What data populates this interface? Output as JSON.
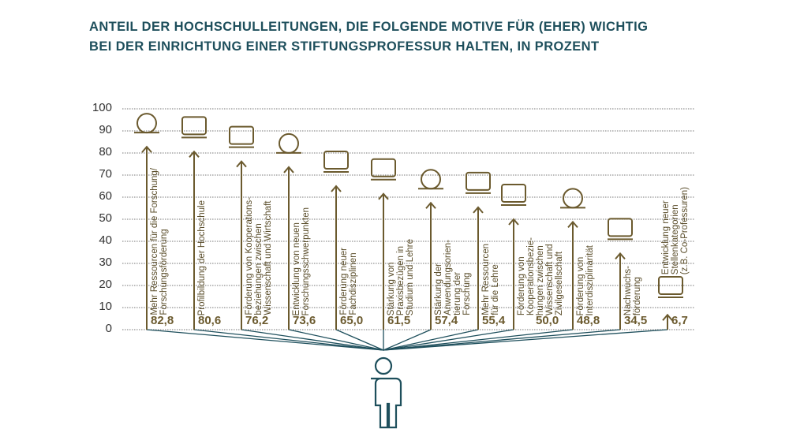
{
  "chart_data": {
    "type": "bar",
    "title": "ANTEIL DER HOCHSCHULLEITUNGEN, DIE FOLGENDE MOTIVE FÜR (EHER) WICHTIG BEI DER EINRICHTUNG EINER STIFTUNGSPROFESSUR HALTEN, IN PROZENT",
    "title_lines": [
      "ANTEIL DER HOCHSCHULLEITUNGEN, DIE FOLGENDE MOTIVE FÜR (EHER) WICHTIG",
      "BEI DER EINRICHTUNG EINER STIFTUNGSPROFESSUR HALTEN, IN PROZENT"
    ],
    "ylim": [
      0,
      100
    ],
    "yticks": [
      "0",
      "10",
      "20",
      "30",
      "40",
      "50",
      "60",
      "70",
      "80",
      "90",
      "100"
    ],
    "grid": true,
    "categories": [
      "Mehr Ressourcen für die Forschung/\nForschungsförderung",
      "Profilbildung der Hochschule",
      "Förderung von Kooperations-\nbeziehungen zwischen\nWissenschaft und Wirtschaft",
      "Entwicklung von neuen\nForschungsschwerpunkten",
      "Förderung neuer\nFachdisziplinen",
      "Stärkung von\nPraxisbezügen in\nStudium und Lehre",
      "Stärkung der\nAnwendungsorien-\ntierung der\nForschung",
      "Mehr Ressourcen\nfür die Lehre",
      "Förderung von\nKooperationsbezie-\nhungen zwischen\nWissenschaft und\nZivilgesellschaft",
      "Förderung von\nInterdisziplinarität",
      "Nachwuchs-\nförderung",
      "Entwicklung neuer\nStellenkategorien\n(z.B. Co-Professuren)"
    ],
    "values": [
      82.8,
      80.6,
      76.2,
      73.6,
      65.0,
      61.5,
      57.4,
      55.4,
      50.0,
      48.8,
      34.5,
      6.7
    ],
    "value_labels": [
      "82,8",
      "80,6",
      "76,2",
      "73,6",
      "65,0",
      "61,5",
      "57,4",
      "55,4",
      "50,0",
      "48,8",
      "34,5",
      "6,7"
    ],
    "icons": [
      "microscope-icon",
      "university-building-icon",
      "handshake-chart-icon",
      "lightbulb-icon",
      "calendar-icon",
      "brain-gear-icon",
      "presenter-icon",
      "lectern-icon",
      "handshake-home-icon",
      "discussion-icon",
      "mentoring-icon",
      "teacher-icon"
    ],
    "colors": {
      "title": "#1e4f5c",
      "arrow": "#6b5a2e",
      "connector": "#1e4f5c",
      "grid": "#777777"
    }
  }
}
